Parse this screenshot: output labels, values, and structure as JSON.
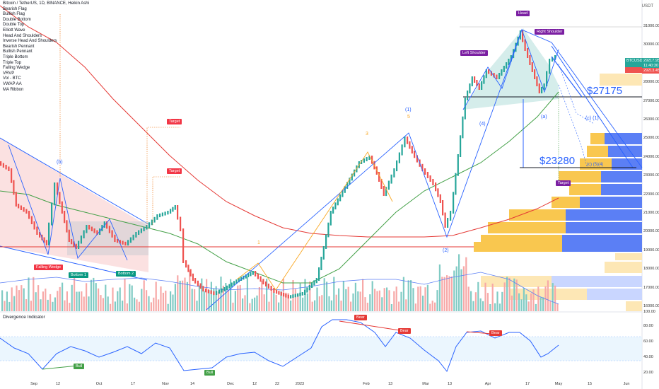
{
  "header": {
    "title": "Bitcoin / TetherUS, 1D, BINANCE, Heikin Ashi",
    "unit": "USDT"
  },
  "legend": {
    "items": [
      "Bearish Flag",
      "Bullish Flag",
      "Double Bottom",
      "Double Top",
      "Elliott Wave",
      "Head And Shoulders",
      "Inverse Head And Shoulders",
      "Bearish Pennant",
      "Bullish Pennant",
      "Triple Bottom",
      "Triple Top",
      "Falling Wedge",
      "VRVP",
      "Vol - BTC",
      "VWAP AA",
      "MA Ribbon"
    ]
  },
  "indicator": {
    "title": "Divergence Indicator"
  },
  "labels": {
    "falling_wedge": "Falling Wedge",
    "bottom1": "Bottom 1",
    "bottom2": "Bottom 2",
    "target1": "Target",
    "target2": "Target",
    "target3": "Target",
    "head": "Head",
    "left_shoulder": "Left Shoulder",
    "right_shoulder": "Right Shoulder",
    "bull1": "Bull",
    "bull2": "Bull",
    "bear1": "Bear",
    "bear2": "Bear",
    "bear3": "Bear",
    "price_27175": "$27175",
    "price_23280": "$23280",
    "wave_b": "(b)",
    "wave_1": "(1)",
    "wave_5": "5",
    "wave_3": "3",
    "wave_4": "(4)",
    "wave_a": "(a)",
    "wave_c1": "(c) (1)",
    "wave_c2": "(c) (5)(4)",
    "wave_2": "(2)",
    "wave_one": "1"
  },
  "price_tags": {
    "ticker": "BTCUSDT",
    "last": "29217.95",
    "countdown": "11:40:30",
    "prev": "29213.45"
  },
  "colors": {
    "accent_blue": "#2962ff",
    "up": "#26a69a",
    "down": "#ef5350",
    "label_red": "#f23645",
    "label_teal": "#089981",
    "label_purple": "#7b1fa2",
    "vwap_red": "#e53935",
    "ma_green": "#43a047",
    "vol_yellow": "#f9c74f",
    "vol_blue": "#5b7ff5"
  },
  "y_axis": {
    "price_ticks": [
      "31000.00",
      "30000.00",
      "29000.00",
      "28000.00",
      "27000.00",
      "26000.00",
      "25000.00",
      "24000.00",
      "23000.00",
      "22000.00",
      "21000.00",
      "20000.00",
      "19000.00",
      "18000.00",
      "17000.00",
      "16000.00"
    ],
    "osc_ticks": [
      "80.00",
      "60.00",
      "40.00",
      "20.00"
    ],
    "vol_tick": "100.00"
  },
  "x_axis": {
    "ticks": [
      "Sep",
      "12",
      "Oct",
      "17",
      "Nov",
      "14",
      "Dec",
      "12",
      "22",
      "2023",
      "Feb",
      "13",
      "Mar",
      "13",
      "Apr",
      "17",
      "May",
      "15",
      "Jun"
    ]
  }
}
